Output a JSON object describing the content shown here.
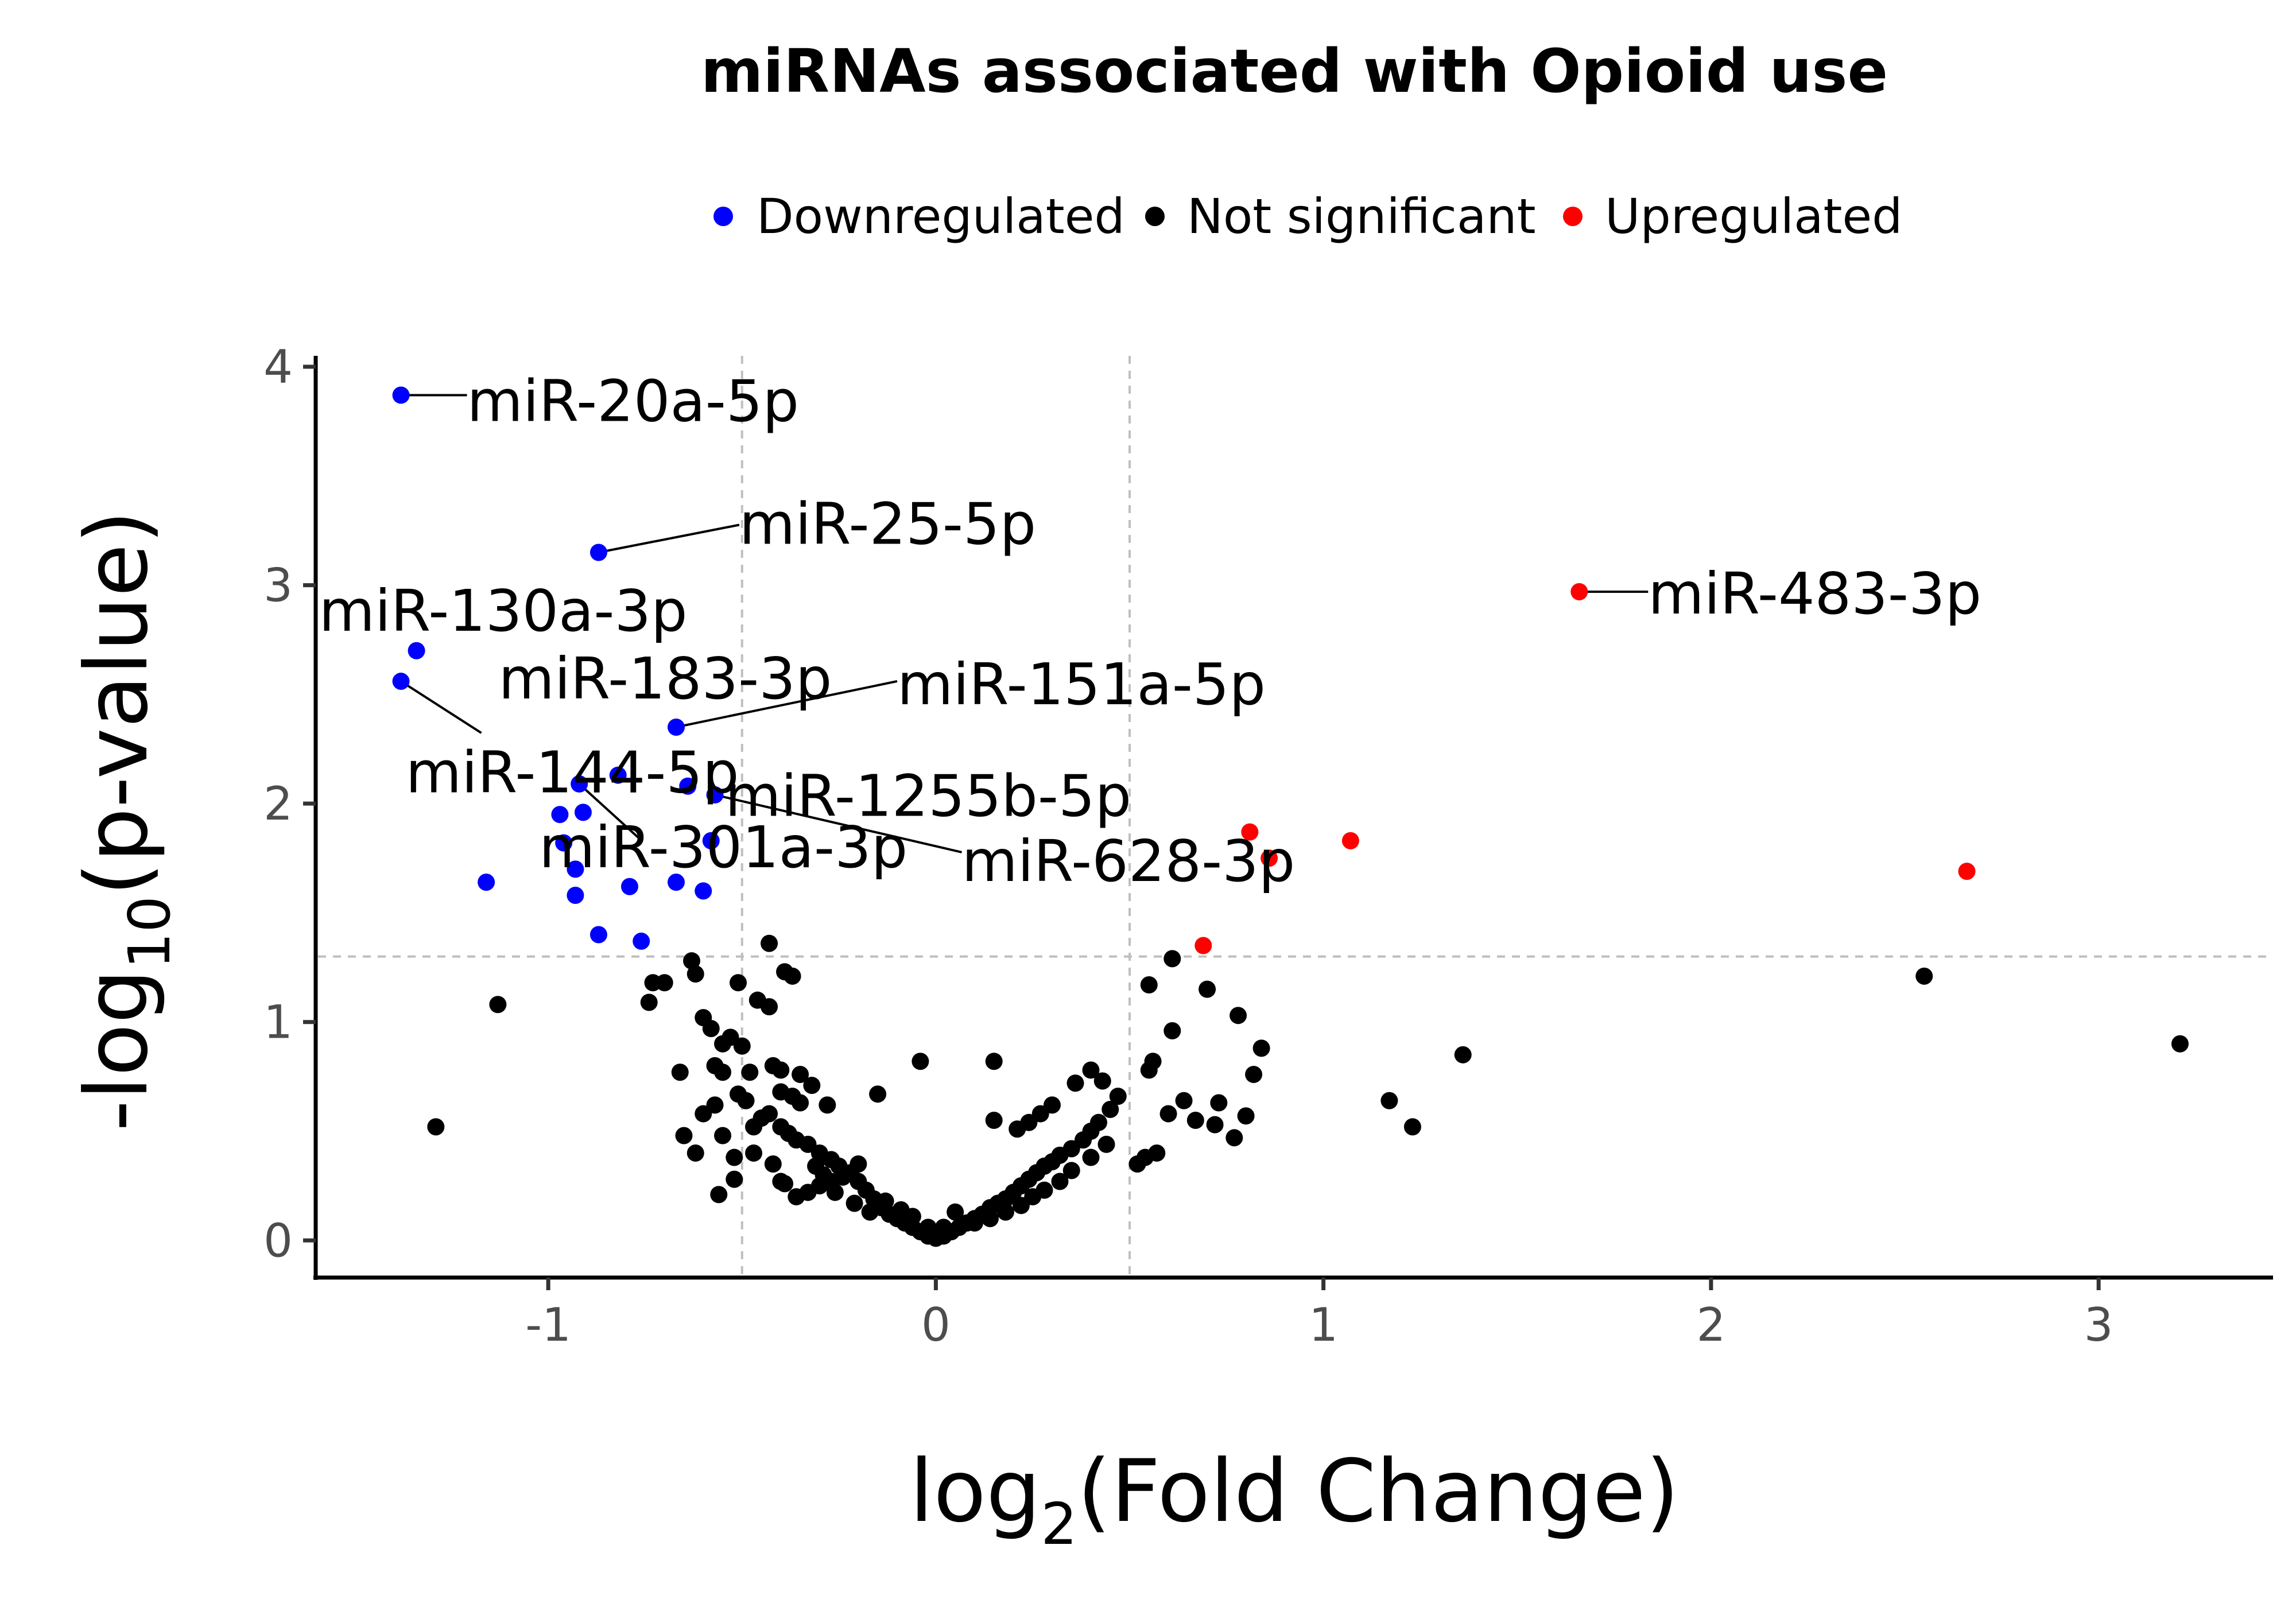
{
  "chart_data": {
    "type": "scatter",
    "title": "miRNAs associated with Opioid use",
    "xlabel_main": "log",
    "xlabel_sub": "2",
    "xlabel_tail": "(Fold Change)",
    "ylabel_main": "-log",
    "ylabel_sub": "10",
    "ylabel_tail": "(p-value)",
    "xlim": [
      -1.6,
      3.45
    ],
    "ylim": [
      -0.17,
      4.05
    ],
    "xticks": [
      -1,
      0,
      1,
      2,
      3
    ],
    "xtick_labels": [
      "-1",
      "0",
      "1",
      "2",
      "3"
    ],
    "yticks": [
      0,
      1,
      2,
      3,
      4
    ],
    "ytick_labels": [
      "0",
      "1",
      "2",
      "3",
      "4"
    ],
    "thresholds": {
      "x": [
        -0.5,
        0.5
      ],
      "y": 1.3
    },
    "grid": false,
    "legend_position": "top",
    "legend": [
      {
        "name": "Downregulated",
        "color": "#0000ff"
      },
      {
        "name": "Not significant",
        "color": "#000000"
      },
      {
        "name": "Upregulated",
        "color": "#ff0000"
      }
    ],
    "series": [
      {
        "name": "Downregulated",
        "color": "#0000ff",
        "points": [
          [
            -1.38,
            3.87
          ],
          [
            -0.87,
            3.15
          ],
          [
            -1.34,
            2.7
          ],
          [
            -1.38,
            2.56
          ],
          [
            -0.67,
            2.35
          ],
          [
            -0.82,
            2.13
          ],
          [
            -0.64,
            2.08
          ],
          [
            -0.57,
            2.04
          ],
          [
            -0.92,
            2.09
          ],
          [
            -0.97,
            1.95
          ],
          [
            -0.91,
            1.96
          ],
          [
            -0.58,
            1.83
          ],
          [
            -0.96,
            1.82
          ],
          [
            -0.93,
            1.7
          ],
          [
            -1.16,
            1.64
          ],
          [
            -0.79,
            1.62
          ],
          [
            -0.67,
            1.64
          ],
          [
            -0.6,
            1.6
          ],
          [
            -0.93,
            1.58
          ],
          [
            -0.87,
            1.4
          ],
          [
            -0.76,
            1.37
          ]
        ]
      },
      {
        "name": "Upregulated",
        "color": "#ff0000",
        "points": [
          [
            1.66,
            2.97
          ],
          [
            1.07,
            1.83
          ],
          [
            0.81,
            1.87
          ],
          [
            0.86,
            1.75
          ],
          [
            2.66,
            1.69
          ],
          [
            0.69,
            1.35
          ]
        ]
      },
      {
        "name": "Not significant",
        "color": "#000000",
        "points": [
          [
            -1.29,
            0.52
          ],
          [
            -1.13,
            1.08
          ],
          [
            -0.63,
            1.28
          ],
          [
            -0.62,
            1.22
          ],
          [
            -0.51,
            1.18
          ],
          [
            -0.43,
            1.36
          ],
          [
            -0.39,
            1.23
          ],
          [
            -0.37,
            1.21
          ],
          [
            -0.46,
            1.1
          ],
          [
            -0.43,
            1.07
          ],
          [
            -0.7,
            1.18
          ],
          [
            -0.73,
            1.18
          ],
          [
            -0.74,
            1.09
          ],
          [
            -0.6,
            1.02
          ],
          [
            -0.58,
            0.97
          ],
          [
            -0.53,
            0.93
          ],
          [
            -0.55,
            0.9
          ],
          [
            -0.5,
            0.89
          ],
          [
            -0.57,
            0.8
          ],
          [
            -0.48,
            0.77
          ],
          [
            -0.42,
            0.8
          ],
          [
            -0.4,
            0.78
          ],
          [
            -0.35,
            0.76
          ],
          [
            -0.32,
            0.71
          ],
          [
            -0.4,
            0.68
          ],
          [
            -0.37,
            0.66
          ],
          [
            -0.35,
            0.63
          ],
          [
            -0.28,
            0.62
          ],
          [
            -0.43,
            0.58
          ],
          [
            -0.4,
            0.52
          ],
          [
            -0.38,
            0.49
          ],
          [
            -0.36,
            0.46
          ],
          [
            -0.33,
            0.44
          ],
          [
            -0.3,
            0.4
          ],
          [
            -0.27,
            0.37
          ],
          [
            -0.25,
            0.34
          ],
          [
            -0.22,
            0.31
          ],
          [
            -0.2,
            0.27
          ],
          [
            -0.18,
            0.23
          ],
          [
            -0.16,
            0.19
          ],
          [
            -0.14,
            0.15
          ],
          [
            -0.12,
            0.12
          ],
          [
            -0.1,
            0.1
          ],
          [
            -0.08,
            0.08
          ],
          [
            -0.06,
            0.06
          ],
          [
            -0.04,
            0.04
          ],
          [
            -0.02,
            0.02
          ],
          [
            0.0,
            0.01
          ],
          [
            0.02,
            0.02
          ],
          [
            0.04,
            0.04
          ],
          [
            0.06,
            0.06
          ],
          [
            0.08,
            0.08
          ],
          [
            0.1,
            0.1
          ],
          [
            0.12,
            0.12
          ],
          [
            0.14,
            0.15
          ],
          [
            0.16,
            0.17
          ],
          [
            0.18,
            0.19
          ],
          [
            0.2,
            0.22
          ],
          [
            0.22,
            0.25
          ],
          [
            0.24,
            0.28
          ],
          [
            0.26,
            0.31
          ],
          [
            0.28,
            0.34
          ],
          [
            0.3,
            0.36
          ],
          [
            0.32,
            0.39
          ],
          [
            0.35,
            0.42
          ],
          [
            0.38,
            0.46
          ],
          [
            0.4,
            0.5
          ],
          [
            0.42,
            0.54
          ],
          [
            0.45,
            0.6
          ],
          [
            0.47,
            0.66
          ],
          [
            0.43,
            0.73
          ],
          [
            0.4,
            0.78
          ],
          [
            0.36,
            0.72
          ],
          [
            0.3,
            0.62
          ],
          [
            0.27,
            0.58
          ],
          [
            0.24,
            0.54
          ],
          [
            0.21,
            0.51
          ],
          [
            0.15,
            0.55
          ],
          [
            0.15,
            0.82
          ],
          [
            -0.04,
            0.82
          ],
          [
            -0.15,
            0.67
          ],
          [
            -0.2,
            0.35
          ],
          [
            -0.24,
            0.29
          ],
          [
            -0.27,
            0.27
          ],
          [
            -0.3,
            0.25
          ],
          [
            -0.33,
            0.22
          ],
          [
            -0.36,
            0.2
          ],
          [
            -0.39,
            0.26
          ],
          [
            -0.47,
            0.4
          ],
          [
            -0.47,
            0.52
          ],
          [
            -0.52,
            0.38
          ],
          [
            -0.55,
            0.48
          ],
          [
            -0.57,
            0.62
          ],
          [
            -0.6,
            0.58
          ],
          [
            -0.62,
            0.4
          ],
          [
            -0.65,
            0.48
          ],
          [
            -0.66,
            0.77
          ],
          [
            -0.55,
            0.77
          ],
          [
            -0.51,
            0.67
          ],
          [
            -0.49,
            0.64
          ],
          [
            -0.45,
            0.56
          ],
          [
            -0.42,
            0.35
          ],
          [
            -0.4,
            0.27
          ],
          [
            -0.52,
            0.28
          ],
          [
            -0.56,
            0.21
          ],
          [
            0.52,
            0.35
          ],
          [
            0.54,
            0.38
          ],
          [
            0.57,
            0.4
          ],
          [
            0.55,
            0.78
          ],
          [
            0.55,
            1.17
          ],
          [
            0.61,
            1.29
          ],
          [
            0.61,
            0.96
          ],
          [
            0.64,
            0.64
          ],
          [
            0.67,
            0.55
          ],
          [
            0.7,
            1.15
          ],
          [
            0.73,
            0.63
          ],
          [
            0.77,
            0.47
          ],
          [
            0.8,
            0.57
          ],
          [
            0.82,
            0.76
          ],
          [
            0.84,
            0.88
          ],
          [
            0.78,
            1.03
          ],
          [
            0.72,
            0.53
          ],
          [
            0.6,
            0.58
          ],
          [
            0.56,
            0.82
          ],
          [
            0.44,
            0.44
          ],
          [
            0.4,
            0.38
          ],
          [
            0.35,
            0.32
          ],
          [
            0.32,
            0.27
          ],
          [
            0.28,
            0.23
          ],
          [
            0.25,
            0.2
          ],
          [
            0.22,
            0.16
          ],
          [
            0.18,
            0.13
          ],
          [
            0.14,
            0.1
          ],
          [
            0.1,
            0.08
          ],
          [
            0.05,
            0.13
          ],
          [
            0.02,
            0.06
          ],
          [
            -0.02,
            0.06
          ],
          [
            -0.06,
            0.11
          ],
          [
            -0.09,
            0.14
          ],
          [
            -0.13,
            0.18
          ],
          [
            -0.17,
            0.13
          ],
          [
            -0.21,
            0.17
          ],
          [
            -0.26,
            0.22
          ],
          [
            -0.29,
            0.3
          ],
          [
            -0.31,
            0.34
          ],
          [
            1.17,
            0.64
          ],
          [
            1.23,
            0.52
          ],
          [
            1.36,
            0.85
          ],
          [
            2.55,
            1.21
          ],
          [
            3.21,
            0.9
          ]
        ]
      }
    ],
    "annotations": [
      {
        "label": "miR-20a-5p",
        "x": -1.38,
        "y": 3.87
      },
      {
        "label": "miR-25-5p",
        "x": -0.87,
        "y": 3.15
      },
      {
        "label": "miR-130a-3p",
        "x": -1.34,
        "y": 2.7
      },
      {
        "label": "miR-183-3p",
        "x": -1.38,
        "y": 2.56
      },
      {
        "label": "miR-151a-5p",
        "x": -0.67,
        "y": 2.35
      },
      {
        "label": "miR-144-5p",
        "x": -0.82,
        "y": 2.13
      },
      {
        "label": "miR-1255b-5p",
        "x": -0.64,
        "y": 2.08
      },
      {
        "label": "miR-301a-3p",
        "x": -0.92,
        "y": 2.09
      },
      {
        "label": "miR-628-3p",
        "x": -0.57,
        "y": 2.04
      },
      {
        "label": "miR-483-3p",
        "x": 1.66,
        "y": 2.97
      }
    ]
  }
}
